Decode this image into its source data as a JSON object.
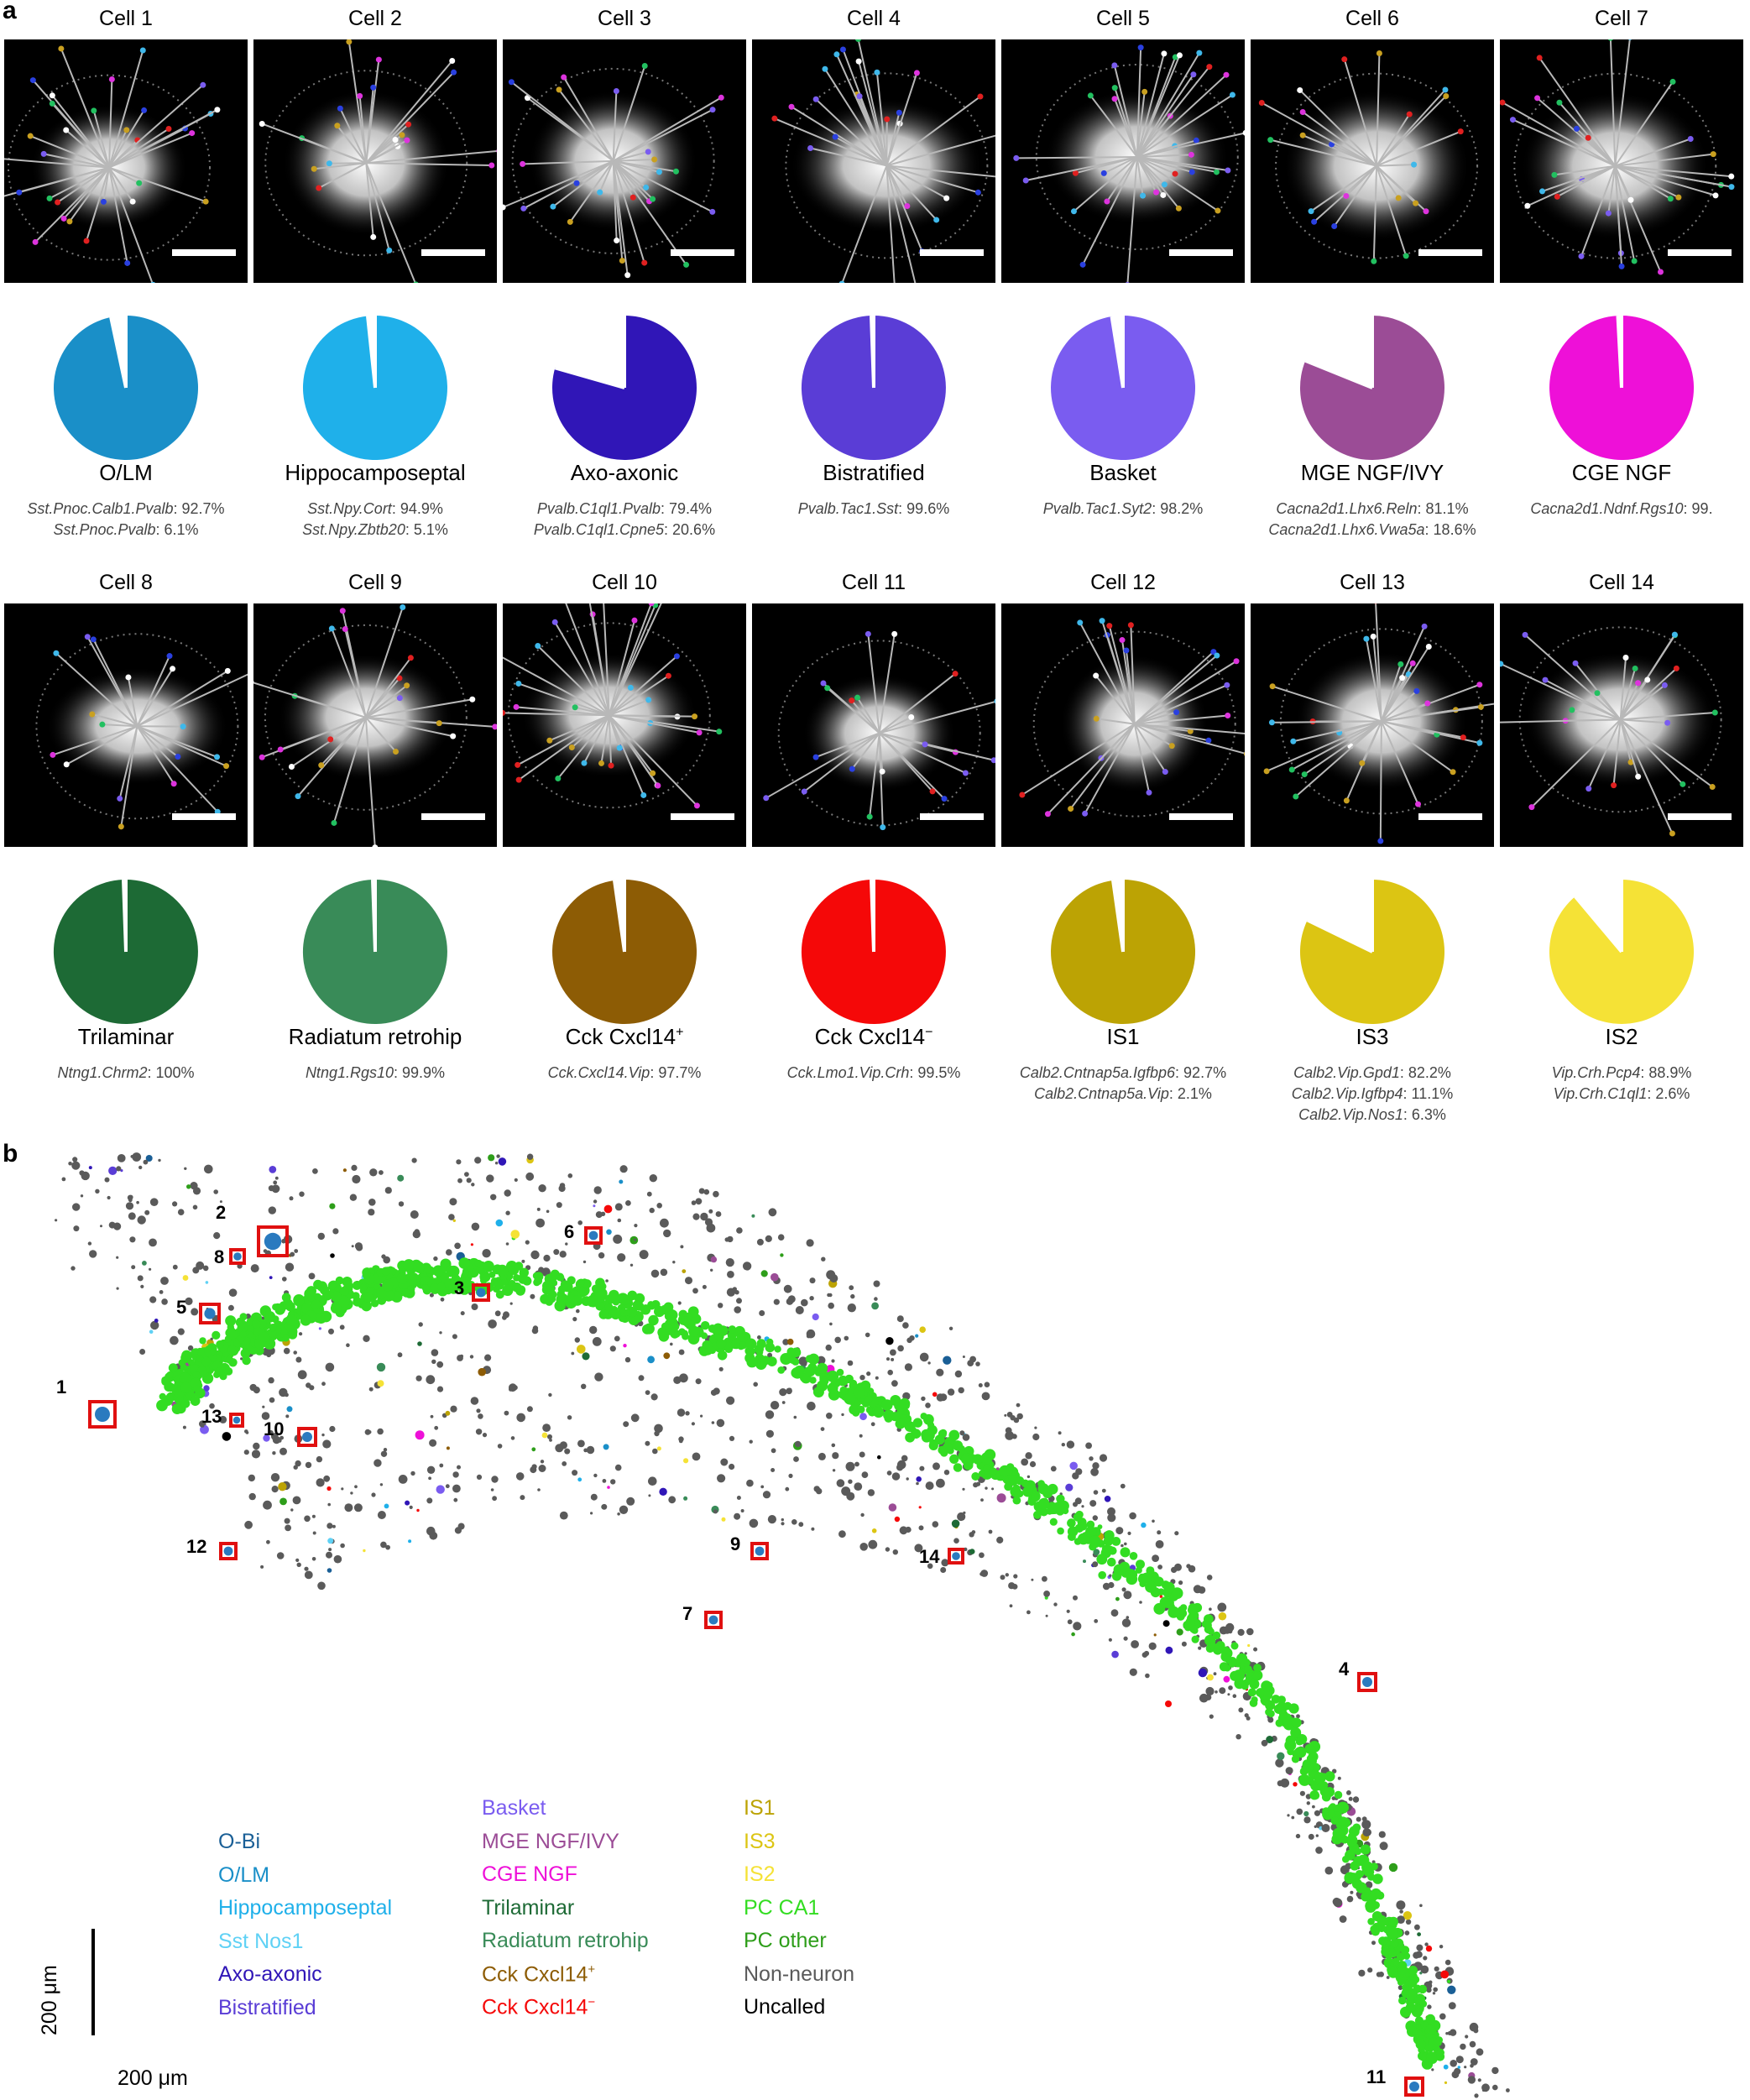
{
  "panel_a_label": "a",
  "panel_b_label": "b",
  "cells": [
    {
      "title": "Cell 1",
      "type": "O/LM",
      "color": "#1a8fc8",
      "gap_deg": 12,
      "mappings": [
        {
          "name": "Sst.Pnoc.Calb1.Pvalb",
          "pct": ": 92.7%"
        },
        {
          "name": "Sst.Pnoc.Pvalb",
          "pct": ": 6.1%"
        }
      ]
    },
    {
      "title": "Cell 2",
      "type": "Hippocamposeptal",
      "color": "#1fb0ea",
      "gap_deg": 6,
      "mappings": [
        {
          "name": "Sst.Npy.Cort",
          "pct": ": 94.9%"
        },
        {
          "name": "Sst.Npy.Zbtb20",
          "pct": ": 5.1%"
        }
      ]
    },
    {
      "title": "Cell 3",
      "type": "Axo-axonic",
      "color": "#3016b7",
      "gap_deg": 74,
      "mappings": [
        {
          "name": "Pvalb.C1ql1.Pvalb",
          "pct": ": 79.4%"
        },
        {
          "name": "Pvalb.C1ql1.Cpne5",
          "pct": ": 20.6%"
        }
      ]
    },
    {
      "title": "Cell 4",
      "type": "Bistratified",
      "color": "#5a3dd6",
      "gap_deg": 2,
      "mappings": [
        {
          "name": "Pvalb.Tac1.Sst",
          "pct": ": 99.6%"
        }
      ]
    },
    {
      "title": "Cell 5",
      "type": "Basket",
      "color": "#7a5cf0",
      "gap_deg": 9,
      "mappings": [
        {
          "name": "Pvalb.Tac1.Syt2",
          "pct": ": 98.2%"
        }
      ]
    },
    {
      "title": "Cell 6",
      "type": "MGE NGF/IVY",
      "color": "#9b4c96",
      "gap_deg": 68,
      "mappings": [
        {
          "name": "Cacna2d1.Lhx6.Reln",
          "pct": ": 81.1%"
        },
        {
          "name": "Cacna2d1.Lhx6.Vwa5a",
          "pct": ": 18.6%"
        }
      ]
    },
    {
      "title": "Cell 7",
      "type": "CGE NGF",
      "color": "#ee10d8",
      "gap_deg": 3,
      "mappings": [
        {
          "name": "Cacna2d1.Ndnf.Rgs10",
          "pct": ": 99."
        }
      ]
    },
    {
      "title": "Cell 8",
      "type": "Trilaminar",
      "color": "#1d6a35",
      "gap_deg": 2,
      "mappings": [
        {
          "name": "Ntng1.Chrm2",
          "pct": ": 100%"
        }
      ]
    },
    {
      "title": "Cell 9",
      "type": "Radiatum retrohip",
      "color": "#398b58",
      "gap_deg": 2,
      "mappings": [
        {
          "name": "Ntng1.Rgs10",
          "pct": ": 99.9%"
        }
      ]
    },
    {
      "title": "Cell 10",
      "type": "Cck Cxcl14",
      "type_sup": "+",
      "color": "#8d5c05",
      "gap_deg": 8,
      "mappings": [
        {
          "name": "Cck.Cxcl14.Vip",
          "pct": ": 97.7%"
        }
      ]
    },
    {
      "title": "Cell 11",
      "type": "Cck Cxcl14",
      "type_sup": "−",
      "color": "#f50808",
      "gap_deg": 2,
      "mappings": [
        {
          "name": "Cck.Lmo1.Vip.Crh",
          "pct": ": 99.5%"
        }
      ]
    },
    {
      "title": "Cell 12",
      "type": "IS1",
      "color": "#bca304",
      "gap_deg": 8,
      "mappings": [
        {
          "name": "Calb2.Cntnap5a.Igfbp6",
          "pct": ": 92.7%"
        },
        {
          "name": "Calb2.Cntnap5a.Vip",
          "pct": ": 2.1%"
        }
      ]
    },
    {
      "title": "Cell 13",
      "type": "IS3",
      "color": "#dcc513",
      "gap_deg": 64,
      "mappings": [
        {
          "name": "Calb2.Vip.Gpd1",
          "pct": ": 82.2%"
        },
        {
          "name": "Calb2.Vip.Igfbp4",
          "pct": ": 11.1%"
        },
        {
          "name": "Calb2.Vip.Nos1",
          "pct": ": 6.3%"
        }
      ]
    },
    {
      "title": "Cell 14",
      "type": "IS2",
      "color": "#f5e236",
      "gap_deg": 40,
      "mappings": [
        {
          "name": "Vip.Crh.Pcp4",
          "pct": ": 88.9%"
        },
        {
          "name": "Vip.Crh.C1ql1",
          "pct": ": 2.6%"
        }
      ]
    }
  ],
  "legend": [
    [
      {
        "label": "O-Bi",
        "color": "#1a5f96"
      },
      {
        "label": "O/LM",
        "color": "#1a8fc8"
      },
      {
        "label": "Hippocamposeptal",
        "color": "#1fb0ea"
      },
      {
        "label": "Sst Nos1",
        "color": "#5fd1f5"
      },
      {
        "label": "Axo-axonic",
        "color": "#3016b7"
      },
      {
        "label": "Bistratified",
        "color": "#5a3dd6"
      }
    ],
    [
      {
        "label": "Basket",
        "color": "#7a5cf0"
      },
      {
        "label": "MGE NGF/IVY",
        "color": "#9b4c96"
      },
      {
        "label": "CGE NGF",
        "color": "#ee10d8"
      },
      {
        "label": "Trilaminar",
        "color": "#1d6a35"
      },
      {
        "label": "Radiatum retrohip",
        "color": "#398b58"
      },
      {
        "label": "Cck Cxcl14",
        "sup": "+",
        "color": "#8d5c05"
      },
      {
        "label": "Cck Cxcl14",
        "sup": "−",
        "color": "#f50808"
      }
    ],
    [
      {
        "label": "IS1",
        "color": "#bca304"
      },
      {
        "label": "IS3",
        "color": "#dcc513"
      },
      {
        "label": "IS2",
        "color": "#f5e236"
      },
      {
        "label": "PC CA1",
        "color": "#33dd22"
      },
      {
        "label": "PC other",
        "color": "#2e9e1a"
      },
      {
        "label": "Non-neuron",
        "color": "#5a5a5a"
      },
      {
        "label": "Uncalled",
        "color": "#000000"
      }
    ]
  ],
  "scale_label_vertical": "200 μm",
  "scale_label_horizontal": "200 μm",
  "map_numbers": [
    "1",
    "2",
    "3",
    "4",
    "5",
    "6",
    "7",
    "8",
    "9",
    "10",
    "11",
    "12",
    "13",
    "14"
  ],
  "colors": {
    "pc_ca1": "#33dd22",
    "non_neuron": "#5a5a5a",
    "marker_box": "#e01010",
    "spot_line": "#b8b8b8"
  }
}
